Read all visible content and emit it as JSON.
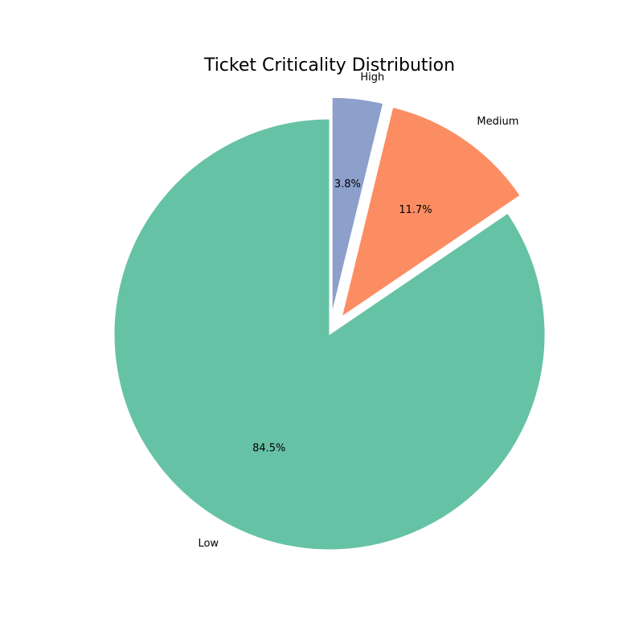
{
  "chart_data": {
    "type": "pie",
    "title": "Ticket Criticality Distribution",
    "slices": [
      {
        "label": "Low",
        "value": 84.5,
        "pct_label": "84.5%",
        "color": "#66c2a5",
        "exploded": false
      },
      {
        "label": "Medium",
        "value": 11.7,
        "pct_label": "11.7%",
        "color": "#fc8d62",
        "exploded": true
      },
      {
        "label": "High",
        "value": 3.8,
        "pct_label": "3.8%",
        "color": "#8da0cb",
        "exploded": true
      }
    ],
    "start_angle_deg": 90,
    "direction": "counterclockwise"
  }
}
